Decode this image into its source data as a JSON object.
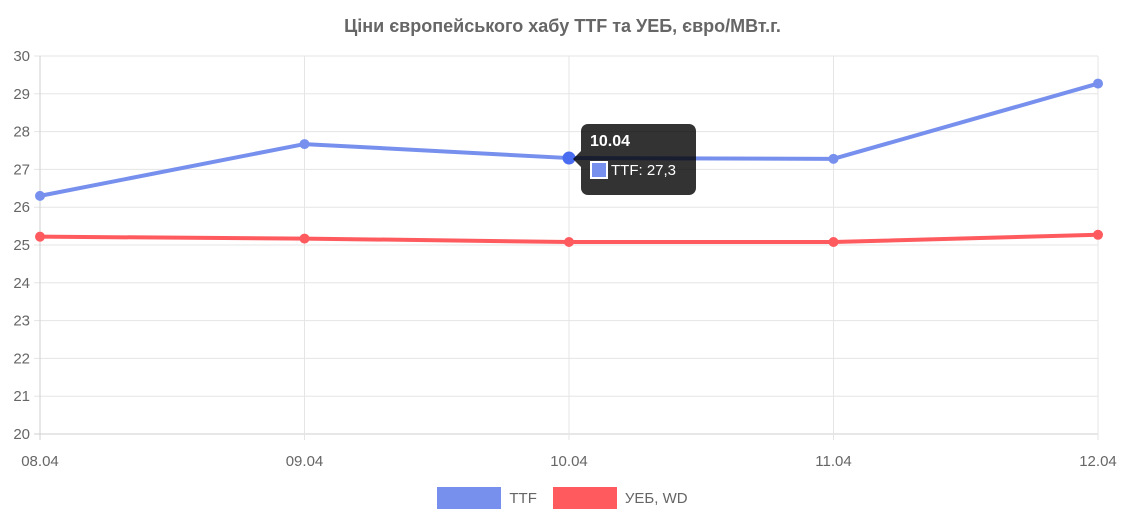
{
  "chart_data": {
    "type": "line",
    "title": "Ціни європейського хабу TTF та УЕБ, євро/МВт.г.",
    "xlabel": "",
    "ylabel": "",
    "categories": [
      "08.04",
      "09.04",
      "10.04",
      "11.04",
      "12.04"
    ],
    "ylim": [
      20,
      30
    ],
    "yticks": [
      20,
      21,
      22,
      23,
      24,
      25,
      26,
      27,
      28,
      29,
      30
    ],
    "grid": true,
    "legend_position": "bottom",
    "series": [
      {
        "name": "TTF",
        "values": [
          26.3,
          27.67,
          27.3,
          27.28,
          29.27
        ],
        "color": "#7790ee"
      },
      {
        "name": "УЕБ, WD",
        "values": [
          25.22,
          25.17,
          25.08,
          25.08,
          25.27
        ],
        "color": "#ff5b5f"
      }
    ],
    "tooltip": {
      "title": "10.04",
      "label": "TTF: 27,3",
      "series_index": 0,
      "point_index": 2
    }
  }
}
